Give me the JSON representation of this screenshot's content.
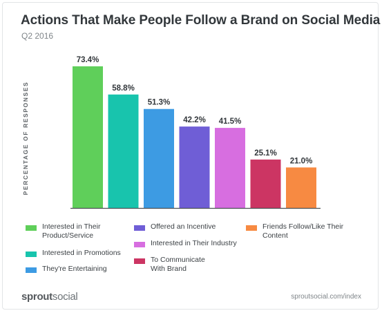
{
  "title": "Actions That Make People Follow a Brand on Social Media",
  "subtitle": "Q2 2016",
  "footer": {
    "brand_bold": "sprout",
    "brand_light": "social",
    "url": "sproutsocial.com/index"
  },
  "colors": {
    "axis": "#4a4f53",
    "label": "#32373b"
  },
  "chart_data": {
    "type": "bar",
    "title": "Actions That Make People Follow a Brand on Social Media",
    "subtitle": "Q2 2016",
    "xlabel": "",
    "ylabel": "PERCENTAGE OF RESPONSES",
    "ylim": [
      0,
      73.4
    ],
    "grid": false,
    "legend_position": "bottom",
    "categories": [
      "Interested in Their Product/Service",
      "Interested in Promotions",
      "They're Entertaining",
      "Offered an Incentive",
      "Interested in Their Industry",
      "To Communicate With Brand",
      "Friends Follow/Like Their Content"
    ],
    "values": [
      73.4,
      58.8,
      51.3,
      42.2,
      41.5,
      25.1,
      21.0
    ],
    "data_labels": [
      "73.4%",
      "58.8%",
      "51.3%",
      "42.2%",
      "41.5%",
      "25.1%",
      "21.0%"
    ],
    "colors": [
      "#5fcf5a",
      "#18c4ad",
      "#3d9be3",
      "#6f5ed6",
      "#d76ee0",
      "#cc3563",
      "#f78a42"
    ]
  }
}
